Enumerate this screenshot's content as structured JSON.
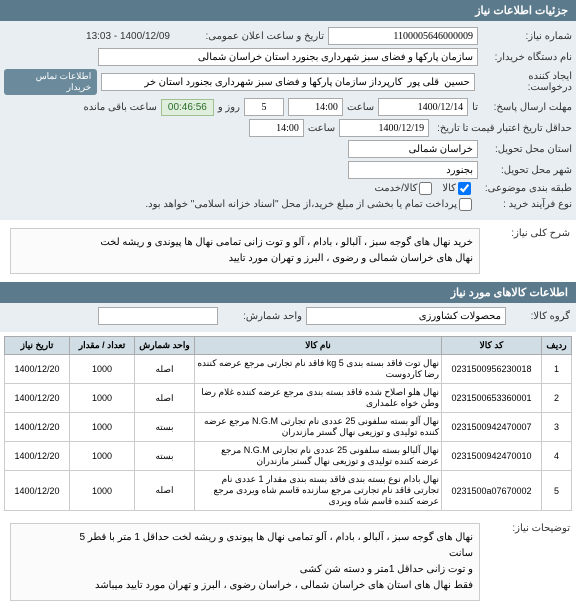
{
  "header": {
    "title": "جزئیات اطلاعات نیاز"
  },
  "form": {
    "req_no_label": "شماره نیاز:",
    "req_no": "1100005646000009",
    "announce_label": "تاریخ و ساعت اعلان عمومی:",
    "announce": "1400/12/09 - 13:03",
    "buyer_label": "نام دستگاه خریدار:",
    "buyer": "سازمان پارکها و فضای سبز شهرداری بجنورد استان خراسان شمالی",
    "creator_label": "ایجاد کننده درخواست:",
    "creator": "حسین  قلی پور  کارپرداز سازمان پارکها و فضای سبز شهرداری بجنورد استان خر",
    "contact_link": "اطلاعات تماس خریدار",
    "deadline_label": "مهلت ارسال پاسخ:",
    "deadline_date": "1400/12/14",
    "deadline_time_lbl": "ساعت",
    "deadline_time": "14:00",
    "remain_days_val": "5",
    "remain_days_lbl": "روز و",
    "timer_val": "00:46:56",
    "remain_lbl": "ساعت باقی مانده",
    "validity_label": "حداقل تاریخ اعتبار قیمت تا تاریخ:",
    "validity_date": "1400/12/19",
    "validity_time_lbl": "ساعت",
    "validity_time": "14:00",
    "province_label": "استان محل تحویل:",
    "province": "خراسان شمالی",
    "city_label": "شهر محل تحویل:",
    "city": "بجنورد",
    "subject_label": "طبقه بندی موضوعی:",
    "subject_cb1": "کالا",
    "subject_cb2": "کالا/خدمت",
    "buy_type_label": "نوع فرآیند خرید :",
    "buy_note": "پرداخت تمام یا بخشی از مبلغ خرید،از محل \"اسناد خزانه اسلامی\" خواهد بود."
  },
  "desc": {
    "label": "شرح کلی نیاز:",
    "text": "خرید نهال های گوجه سبز ، آلبالو ، بادام ، آلو و توت زانی تمامی نهال ها پیوندی و ریشه لخت\nنهال های خراسان شمالی و رضوی ، البرز و تهران مورد تایید"
  },
  "goods_header": {
    "title": "اطلاعات کالاهای مورد نیاز",
    "group_label": "گروه کالا:",
    "group_value": "محصولات کشاورزی",
    "unit_label": "واحد شمارش:"
  },
  "table": {
    "columns": [
      "ردیف",
      "کد کالا",
      "نام کالا",
      "واحد شمارش",
      "تعداد / مقدار",
      "تاریخ نیاز"
    ],
    "rows": [
      [
        "1",
        "0231500956230018",
        "نهال توت فاقد بسته بندی 5 kg فاقد نام تجارتی مرجع عرضه کننده رضا کاردوست",
        "اصله",
        "1000",
        "1400/12/20"
      ],
      [
        "2",
        "0231500653360001",
        "نهال هلو اصلاح شده فاقد بسته بندی مرجع عرضه کننده غلام رضا وطن خواه علمداری",
        "اصله",
        "1000",
        "1400/12/20"
      ],
      [
        "3",
        "0231500942470007",
        "نهال آلو بسته سلفونی 25 عددی نام تجارتی N.G.M مرجع عرضه کننده تولیدی و توزیعی نهال گستر مازندران",
        "بسته",
        "1000",
        "1400/12/20"
      ],
      [
        "4",
        "0231500942470010",
        "نهال آلبالو بسته سلفونی 25 عددی نام تجارتی N.G.M مرجع عرضه کننده تولیدی و توزیعی نهال گستر مازندران",
        "بسته",
        "1000",
        "1400/12/20"
      ],
      [
        "5",
        "0231500a07670002",
        "نهال بادام نوع بسته بندی فاقد بسته بندی مقدار 1 عددی نام تجارتی فاقد نام تجارتی مرجع سازنده قاسم شاه ویردی مرجع عرضه کننده قاسم شاه ویردی",
        "اصله",
        "1000",
        "1400/12/20"
      ]
    ]
  },
  "notes": {
    "label": "توضیحات نیاز:",
    "text": "نهال های گوجه سبز ، آلبالو ، بادام ، آلو  تمامی نهال ها پیوندی و ریشه لخت حداقل 1 متر با قطر 5\nسانت\nو توت زانی حداقل 1متر و دسته شن کشی\nفقط نهال های استان های خراسان شمالی ، خراسان رضوی ، البرز و تهران مورد تایید میباشد"
  }
}
